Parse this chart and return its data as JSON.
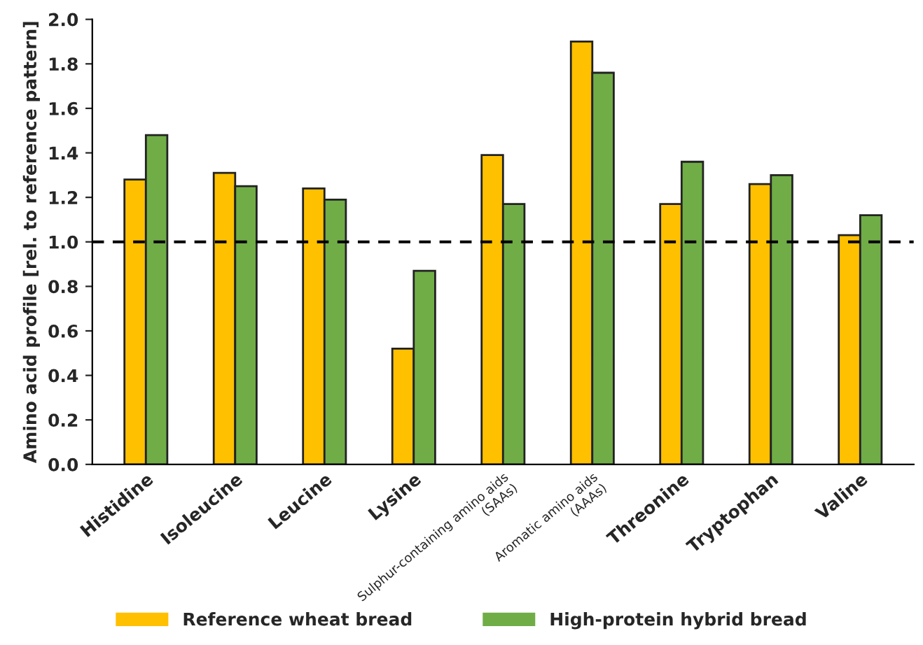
{
  "chart_data": {
    "type": "bar",
    "ylabel": "Amino acid profile [rel. to reference pattern]",
    "categories": [
      "Histidine",
      "Isoleucine",
      "Leucine",
      "Lysine",
      "Sulphur-containing amino aids\n(SAAs)",
      "Aromatic amino aids\n(AAAs)",
      "Threonine",
      "Tryptophan",
      "Valine"
    ],
    "series": [
      {
        "name": "Reference wheat bread",
        "color": "#ffc000",
        "values": [
          1.28,
          1.31,
          1.24,
          0.52,
          1.39,
          1.9,
          1.17,
          1.26,
          1.03
        ]
      },
      {
        "name": "High-protein hybrid bread",
        "color": "#70ad47",
        "values": [
          1.48,
          1.25,
          1.19,
          0.87,
          1.17,
          1.76,
          1.36,
          1.3,
          1.12
        ]
      }
    ],
    "ylim": [
      0,
      2.0
    ],
    "yticks": [
      {
        "value": 0,
        "label": "0.0"
      },
      {
        "value": 0.2,
        "label": "0.2"
      },
      {
        "value": 0.4,
        "label": "0.4"
      },
      {
        "value": 0.6,
        "label": "0.6"
      },
      {
        "value": 0.8,
        "label": "0.8"
      },
      {
        "value": 1.0,
        "label": "1.0"
      },
      {
        "value": 1.2,
        "label": "1.2"
      },
      {
        "value": 1.4,
        "label": "1.4"
      },
      {
        "value": 1.6,
        "label": "1.6"
      },
      {
        "value": 1.8,
        "label": "1.8"
      },
      {
        "value": 2.0,
        "label": "2.0"
      }
    ],
    "ref_lines": [
      {
        "axis": "y",
        "value": 1.0,
        "color": "#000000",
        "line_style": "dashed"
      }
    ],
    "grid": false,
    "legend": "bottom"
  }
}
